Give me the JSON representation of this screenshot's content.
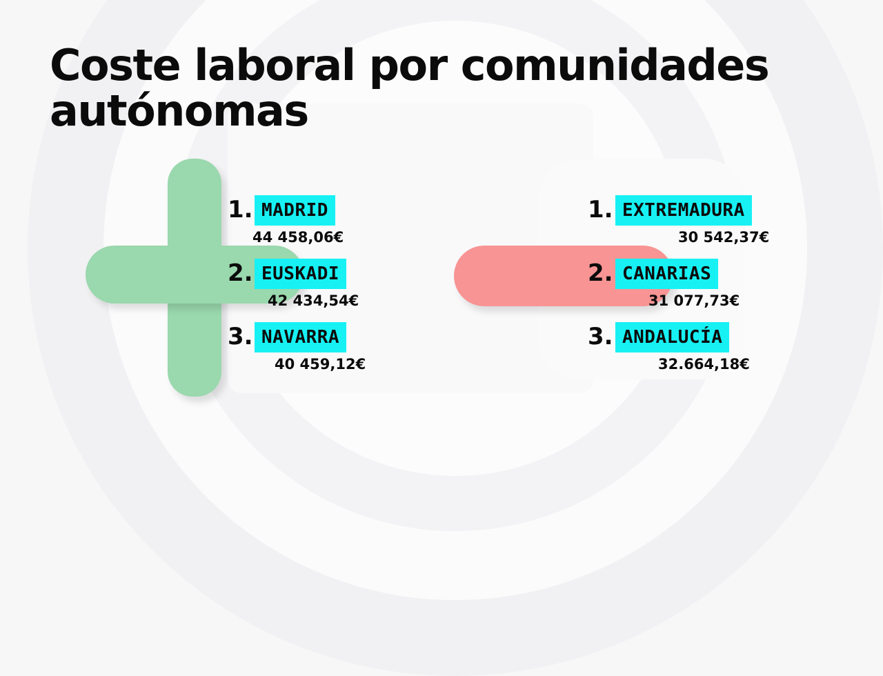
{
  "title": "Coste laboral por comunidades autónomas",
  "highest": {
    "icon": "plus-icon",
    "accent": "#9ad8ad",
    "items": [
      {
        "rank": "1.",
        "region": "MADRID",
        "value": "44 458,06€"
      },
      {
        "rank": "2.",
        "region": "EUSKADI",
        "value": "42 434,54€"
      },
      {
        "rank": "3.",
        "region": "NAVARRA",
        "value": "40 459,12€"
      }
    ]
  },
  "lowest": {
    "icon": "minus-icon",
    "accent": "#f89494",
    "items": [
      {
        "rank": "1.",
        "region": "EXTREMADURA",
        "value": "30 542,37€"
      },
      {
        "rank": "2.",
        "region": "CANARIAS",
        "value": "31 077,73€"
      },
      {
        "rank": "3.",
        "region": "ANDALUCÍA",
        "value": "32.664,18€"
      }
    ]
  },
  "highlight_color": "#17f1f4"
}
